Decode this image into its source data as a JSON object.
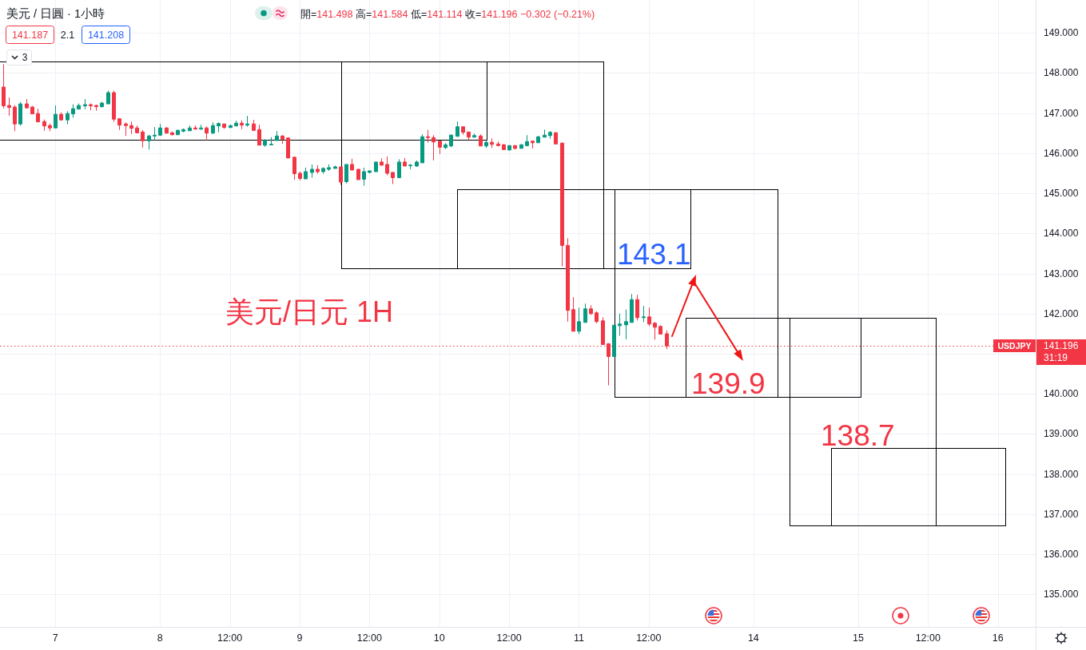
{
  "chart_data": {
    "type": "candlestick",
    "title": "美元 / 日圓 · 1小時",
    "subtitle": "開=141.498 高=141.584 低=141.114 收=141.196 −0.302 (−0.21%)",
    "categories": [
      null,
      null,
      null,
      null,
      null,
      null,
      null,
      null,
      null,
      "7",
      null,
      null,
      null,
      null,
      null,
      null,
      null,
      null,
      null,
      null,
      null,
      null,
      null,
      null,
      null,
      null,
      null,
      "8",
      null,
      null,
      null,
      null,
      null,
      null,
      null,
      null,
      null,
      null,
      null,
      "12:00",
      null,
      null,
      null,
      null,
      null,
      null,
      null,
      null,
      null,
      null,
      null,
      "9",
      null,
      null,
      null,
      null,
      null,
      null,
      null,
      null,
      null,
      null,
      null,
      "12:00",
      null,
      null,
      null,
      null,
      null,
      null,
      null,
      null,
      null,
      null,
      null,
      "10",
      null,
      null,
      null,
      null,
      null,
      null,
      null,
      null,
      null,
      null,
      null,
      "12:00",
      null,
      null,
      null,
      null,
      null,
      null,
      null,
      null,
      null,
      null,
      null,
      "11",
      null,
      null,
      null,
      null,
      null,
      null,
      null,
      null,
      null,
      null,
      null,
      "12:00",
      null,
      null,
      null,
      null,
      null,
      null,
      null,
      null,
      null,
      null,
      null,
      null,
      null,
      null,
      null,
      null,
      null,
      "14",
      null,
      null,
      null,
      null,
      null,
      null,
      null,
      null,
      null,
      null,
      null,
      null,
      null,
      null,
      null,
      null,
      null,
      "15",
      null,
      null,
      null,
      null,
      null,
      null,
      null,
      null,
      null,
      null,
      null,
      "12:00",
      null,
      null,
      null,
      null,
      null,
      null,
      null,
      null,
      null,
      null,
      null,
      "16",
      null,
      null,
      null,
      null,
      null,
      null
    ],
    "ylim": [
      134.19,
      149.82
    ],
    "yticks": [
      {
        "value": 135,
        "label": "135.000"
      },
      {
        "value": 136,
        "label": "136.000"
      },
      {
        "value": 137,
        "label": "137.000"
      },
      {
        "value": 138,
        "label": "138.000"
      },
      {
        "value": 139,
        "label": "139.000"
      },
      {
        "value": 140,
        "label": "140.000"
      },
      {
        "value": 141,
        "label": null
      },
      {
        "value": 142,
        "label": "142.000"
      },
      {
        "value": 143,
        "label": "143.000"
      },
      {
        "value": 144,
        "label": "144.000"
      },
      {
        "value": 145,
        "label": "145.000"
      },
      {
        "value": 146,
        "label": "146.000"
      },
      {
        "value": 147,
        "label": "147.000"
      },
      {
        "value": 148,
        "label": "148.000"
      },
      {
        "value": 149,
        "label": "149.000"
      }
    ],
    "grid": true,
    "series": [
      {
        "ohlc": [
          [
            147.65,
            148.22,
            147.12,
            147.18
          ],
          [
            147.19,
            147.39,
            146.93,
            147.14
          ],
          [
            147.15,
            147.2,
            146.55,
            146.73
          ],
          [
            146.73,
            147.27,
            146.69,
            147.23
          ],
          [
            147.23,
            147.35,
            147.12,
            147.13
          ],
          [
            147.15,
            147.18,
            146.98,
            146.98
          ],
          [
            146.99,
            147.11,
            146.78,
            146.78
          ],
          [
            146.79,
            146.84,
            146.56,
            146.68
          ],
          [
            146.69,
            146.74,
            146.55,
            146.63
          ],
          [
            146.63,
            147.19,
            146.63,
            146.97
          ],
          [
            146.97,
            147.02,
            146.82,
            146.83
          ],
          [
            146.83,
            147.05,
            146.72,
            146.99
          ],
          [
            146.98,
            147.22,
            146.89,
            147.11
          ],
          [
            147.1,
            147.24,
            147.1,
            147.19
          ],
          [
            147.18,
            147.35,
            147.1,
            147.21
          ],
          [
            147.21,
            147.24,
            147.07,
            147.18
          ],
          [
            147.19,
            147.21,
            147.06,
            147.16
          ],
          [
            147.16,
            147.28,
            147.14,
            147.25
          ],
          [
            147.23,
            147.56,
            147.23,
            147.51
          ],
          [
            147.51,
            147.56,
            146.78,
            146.85
          ],
          [
            146.86,
            146.86,
            146.58,
            146.7
          ],
          [
            146.73,
            146.77,
            146.43,
            146.69
          ],
          [
            146.69,
            146.79,
            146.48,
            146.62
          ],
          [
            146.63,
            146.69,
            146.49,
            146.51
          ],
          [
            146.53,
            146.58,
            146.14,
            146.31
          ],
          [
            146.31,
            146.46,
            146.09,
            146.43
          ],
          [
            146.43,
            146.65,
            146.31,
            146.45
          ],
          [
            146.45,
            146.73,
            146.43,
            146.63
          ],
          [
            146.63,
            146.65,
            146.49,
            146.5
          ],
          [
            146.51,
            146.54,
            146.45,
            146.46
          ],
          [
            146.46,
            146.59,
            146.46,
            146.57
          ],
          [
            146.55,
            146.62,
            146.52,
            146.59
          ],
          [
            146.56,
            146.69,
            146.56,
            146.63
          ],
          [
            146.63,
            146.69,
            146.59,
            146.6
          ],
          [
            146.6,
            146.71,
            146.59,
            146.63
          ],
          [
            146.63,
            146.67,
            146.32,
            146.5
          ],
          [
            146.5,
            146.77,
            146.48,
            146.69
          ],
          [
            146.68,
            146.77,
            146.52,
            146.74
          ],
          [
            146.73,
            146.73,
            146.61,
            146.64
          ],
          [
            146.64,
            146.71,
            146.63,
            146.69
          ],
          [
            146.68,
            146.81,
            146.68,
            146.75
          ],
          [
            146.75,
            146.82,
            146.6,
            146.7
          ],
          [
            146.7,
            146.93,
            146.66,
            146.73
          ],
          [
            146.73,
            146.83,
            146.55,
            146.57
          ],
          [
            146.59,
            146.71,
            146.2,
            146.2
          ],
          [
            146.2,
            146.35,
            146.16,
            146.33
          ],
          [
            146.21,
            146.4,
            146.2,
            146.22
          ],
          [
            146.32,
            146.55,
            146.3,
            146.43
          ],
          [
            146.43,
            146.45,
            146.23,
            146.35
          ],
          [
            146.38,
            146.38,
            145.88,
            145.88
          ],
          [
            145.9,
            145.92,
            145.34,
            145.49
          ],
          [
            145.5,
            145.54,
            145.32,
            145.37
          ],
          [
            145.36,
            145.64,
            145.36,
            145.54
          ],
          [
            145.52,
            145.72,
            145.39,
            145.6
          ],
          [
            145.6,
            145.7,
            145.49,
            145.54
          ],
          [
            145.54,
            145.65,
            145.49,
            145.62
          ],
          [
            145.6,
            145.72,
            145.56,
            145.64
          ],
          [
            145.62,
            145.69,
            145.62,
            145.66
          ],
          [
            145.66,
            145.66,
            145.21,
            145.28
          ],
          [
            145.29,
            145.72,
            145.25,
            145.72
          ],
          [
            145.72,
            145.86,
            145.58,
            145.58
          ],
          [
            145.6,
            145.6,
            145.34,
            145.34
          ],
          [
            145.35,
            145.64,
            145.19,
            145.54
          ],
          [
            145.52,
            145.56,
            145.5,
            145.56
          ],
          [
            145.54,
            145.78,
            145.54,
            145.78
          ],
          [
            145.78,
            145.87,
            145.7,
            145.7
          ],
          [
            145.72,
            145.92,
            145.45,
            145.5
          ],
          [
            145.52,
            145.53,
            145.23,
            145.39
          ],
          [
            145.39,
            145.85,
            145.39,
            145.78
          ],
          [
            145.78,
            145.88,
            145.68,
            145.68
          ],
          [
            145.69,
            145.73,
            145.6,
            145.7
          ],
          [
            145.68,
            145.82,
            145.66,
            145.78
          ],
          [
            145.76,
            146.47,
            145.76,
            146.41
          ],
          [
            146.41,
            146.58,
            146.26,
            146.39
          ],
          [
            146.39,
            146.45,
            145.82,
            146.28
          ],
          [
            146.3,
            146.3,
            145.98,
            146.15
          ],
          [
            146.14,
            146.25,
            146.1,
            146.21
          ],
          [
            146.18,
            146.47,
            146.15,
            146.45
          ],
          [
            146.42,
            146.79,
            146.42,
            146.66
          ],
          [
            146.66,
            146.67,
            146.46,
            146.52
          ],
          [
            146.53,
            146.53,
            146.33,
            146.4
          ],
          [
            146.4,
            146.49,
            146.4,
            146.44
          ],
          [
            146.43,
            146.47,
            146.18,
            146.18
          ],
          [
            146.18,
            146.33,
            146.13,
            146.27
          ],
          [
            146.27,
            146.37,
            146.13,
            146.22
          ],
          [
            146.23,
            146.29,
            146.17,
            146.19
          ],
          [
            146.21,
            146.23,
            146.09,
            146.09
          ],
          [
            146.08,
            146.2,
            146.07,
            146.19
          ],
          [
            146.19,
            146.2,
            146.09,
            146.12
          ],
          [
            146.12,
            146.23,
            146.12,
            146.21
          ],
          [
            146.19,
            146.45,
            146.17,
            146.29
          ],
          [
            146.3,
            146.32,
            146.12,
            146.26
          ],
          [
            146.26,
            146.43,
            146.26,
            146.41
          ],
          [
            146.4,
            146.59,
            146.4,
            146.45
          ],
          [
            146.44,
            146.55,
            146.36,
            146.52
          ],
          [
            146.51,
            146.53,
            146.23,
            146.23
          ],
          [
            146.25,
            146.27,
            143.18,
            143.7
          ],
          [
            143.7,
            143.88,
            141.8,
            142.08
          ],
          [
            142.1,
            142.41,
            141.56,
            141.56
          ],
          [
            141.56,
            142.15,
            141.49,
            141.8
          ],
          [
            141.78,
            142.25,
            141.78,
            142.12
          ],
          [
            142.12,
            142.21,
            141.97,
            142.0
          ],
          [
            142.02,
            142.06,
            141.76,
            141.8
          ],
          [
            141.82,
            141.91,
            141.23,
            141.23
          ],
          [
            141.25,
            141.26,
            140.21,
            140.93
          ],
          [
            140.93,
            141.72,
            140.93,
            141.71
          ],
          [
            141.7,
            142.0,
            141.45,
            141.74
          ],
          [
            141.72,
            142.1,
            141.36,
            141.8
          ],
          [
            141.78,
            142.49,
            141.78,
            142.35
          ],
          [
            142.35,
            142.47,
            141.83,
            141.9
          ],
          [
            141.9,
            142.19,
            141.79,
            141.92
          ],
          [
            141.92,
            142.15,
            141.69,
            141.74
          ],
          [
            141.76,
            141.79,
            141.35,
            141.66
          ],
          [
            141.68,
            141.71,
            141.49,
            141.49
          ],
          [
            141.498,
            141.584,
            141.114,
            141.196
          ],
          null,
          null,
          null,
          null,
          null,
          null,
          null,
          null,
          null,
          null,
          null,
          null,
          null,
          null,
          null,
          null,
          null,
          null,
          null,
          null,
          null,
          null,
          null,
          null,
          null,
          null,
          null,
          null,
          null,
          null,
          null,
          null,
          null,
          null,
          null,
          null,
          null,
          null,
          null,
          null,
          null,
          null,
          null,
          null,
          null,
          null,
          null,
          null,
          null,
          null,
          null,
          null,
          null,
          null,
          null,
          null,
          null,
          null,
          null,
          null,
          null,
          null,
          null
        ],
        "colors": [
          "#f23645",
          "#f23645",
          "#f23645",
          "#089981",
          "#f23645",
          "#f23645",
          "#f23645",
          "#f23645",
          "#f23645",
          "#089981",
          "#f23645",
          "#089981",
          "#089981",
          "#089981",
          "#089981",
          "#f23645",
          "#f23645",
          "#089981",
          "#089981",
          "#f23645",
          "#f23645",
          "#f23645",
          "#f23645",
          "#f23645",
          "#f23645",
          "#089981",
          "#089981",
          "#089981",
          "#f23645",
          "#f23645",
          "#089981",
          "#089981",
          "#089981",
          "#f23645",
          "#089981",
          "#f23645",
          "#089981",
          "#089981",
          "#f23645",
          "#089981",
          "#089981",
          "#f23645",
          "#089981",
          "#f23645",
          "#f23645",
          "#089981",
          "#089981",
          "#089981",
          "#f23645",
          "#f23645",
          "#f23645",
          "#f23645",
          "#089981",
          "#089981",
          "#f23645",
          "#089981",
          "#089981",
          "#089981",
          "#f23645",
          "#089981",
          "#f23645",
          "#f23645",
          "#089981",
          "#089981",
          "#089981",
          "#f23645",
          "#f23645",
          "#f23645",
          "#089981",
          "#f23645",
          "#089981",
          "#089981",
          "#089981",
          "#f23645",
          "#f23645",
          "#f23645",
          "#089981",
          "#089981",
          "#089981",
          "#f23645",
          "#f23645",
          "#089981",
          "#f23645",
          "#089981",
          "#f23645",
          "#f23645",
          "#f23645",
          "#089981",
          "#f23645",
          "#089981",
          "#089981",
          "#f23645",
          "#089981",
          "#089981",
          "#089981",
          "#f23645",
          "#f23645",
          "#f23645",
          "#f23645",
          "#089981",
          "#089981",
          "#f23645",
          "#f23645",
          "#f23645",
          "#f23645",
          "#089981",
          "#089981",
          "#089981",
          "#089981",
          "#f23645",
          "#089981",
          "#f23645",
          "#f23645",
          "#f23645",
          "#f23645",
          null,
          null,
          null,
          null,
          null,
          null,
          null,
          null,
          null,
          null,
          null,
          null,
          null,
          null,
          null,
          null,
          null,
          null,
          null,
          null,
          null,
          null,
          null,
          null,
          null,
          null,
          null,
          null,
          null,
          null,
          null,
          null,
          null,
          null,
          null,
          null,
          null,
          null,
          null,
          null,
          null,
          null,
          null,
          null,
          null,
          null,
          null,
          null,
          null,
          null,
          null,
          null,
          null,
          null,
          null,
          null,
          null,
          null,
          null,
          null,
          null,
          null,
          null
        ]
      }
    ],
    "ref_lines": [
      {
        "axis": "y",
        "value": 141.196,
        "label": "USDJPY",
        "color": "#f23645",
        "line_style": "dotted"
      }
    ],
    "annotations": [
      "美元/日元 1H",
      "141.187",
      "2.1",
      "141.208",
      "3",
      "141.196",
      "31:19",
      "143.1",
      "139.9",
      "138.7"
    ]
  }
}
